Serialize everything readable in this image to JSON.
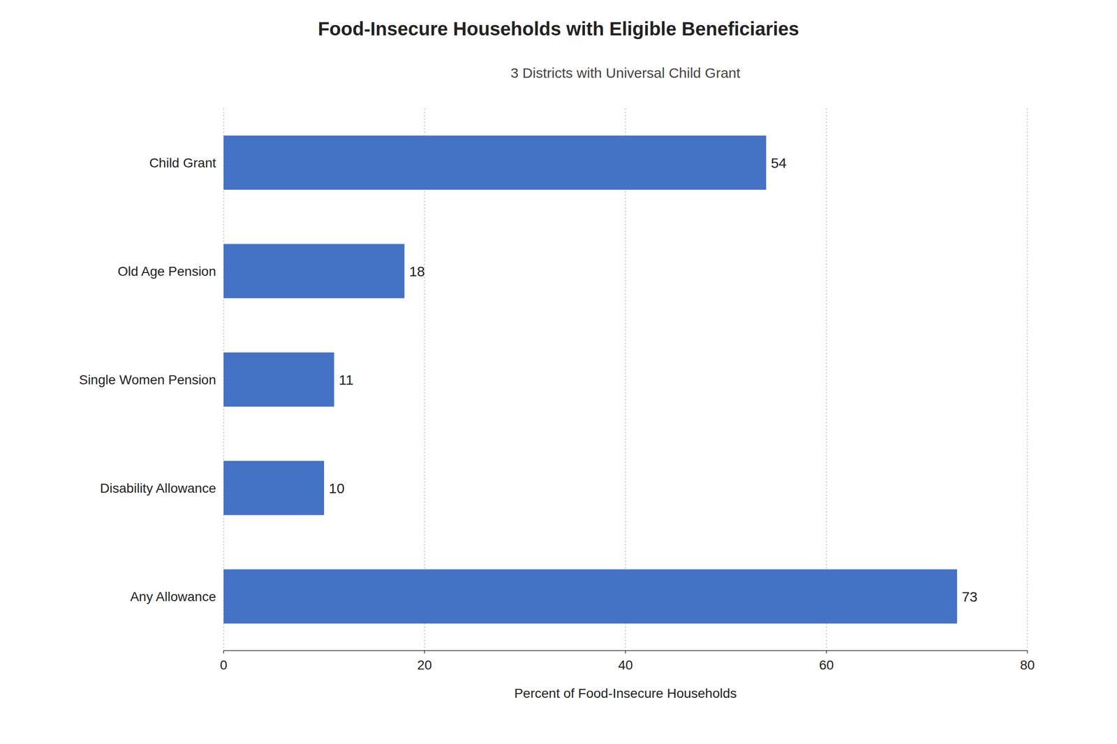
{
  "chart_data": {
    "type": "bar",
    "orientation": "horizontal",
    "title": "Food-Insecure Households with Eligible Beneficiaries",
    "subtitle": "3 Districts with Universal Child Grant",
    "categories": [
      "Child Grant",
      "Old Age Pension",
      "Single Women Pension",
      "Disability Allowance",
      "Any Allowance"
    ],
    "values": [
      54,
      18,
      11,
      10,
      73
    ],
    "color": "#4472C4",
    "xlabel": "Percent of Food-Insecure Households",
    "xlim": [
      0,
      80
    ],
    "xticks": [
      0,
      20,
      40,
      60,
      80
    ],
    "grid": true,
    "data_labels": true
  }
}
